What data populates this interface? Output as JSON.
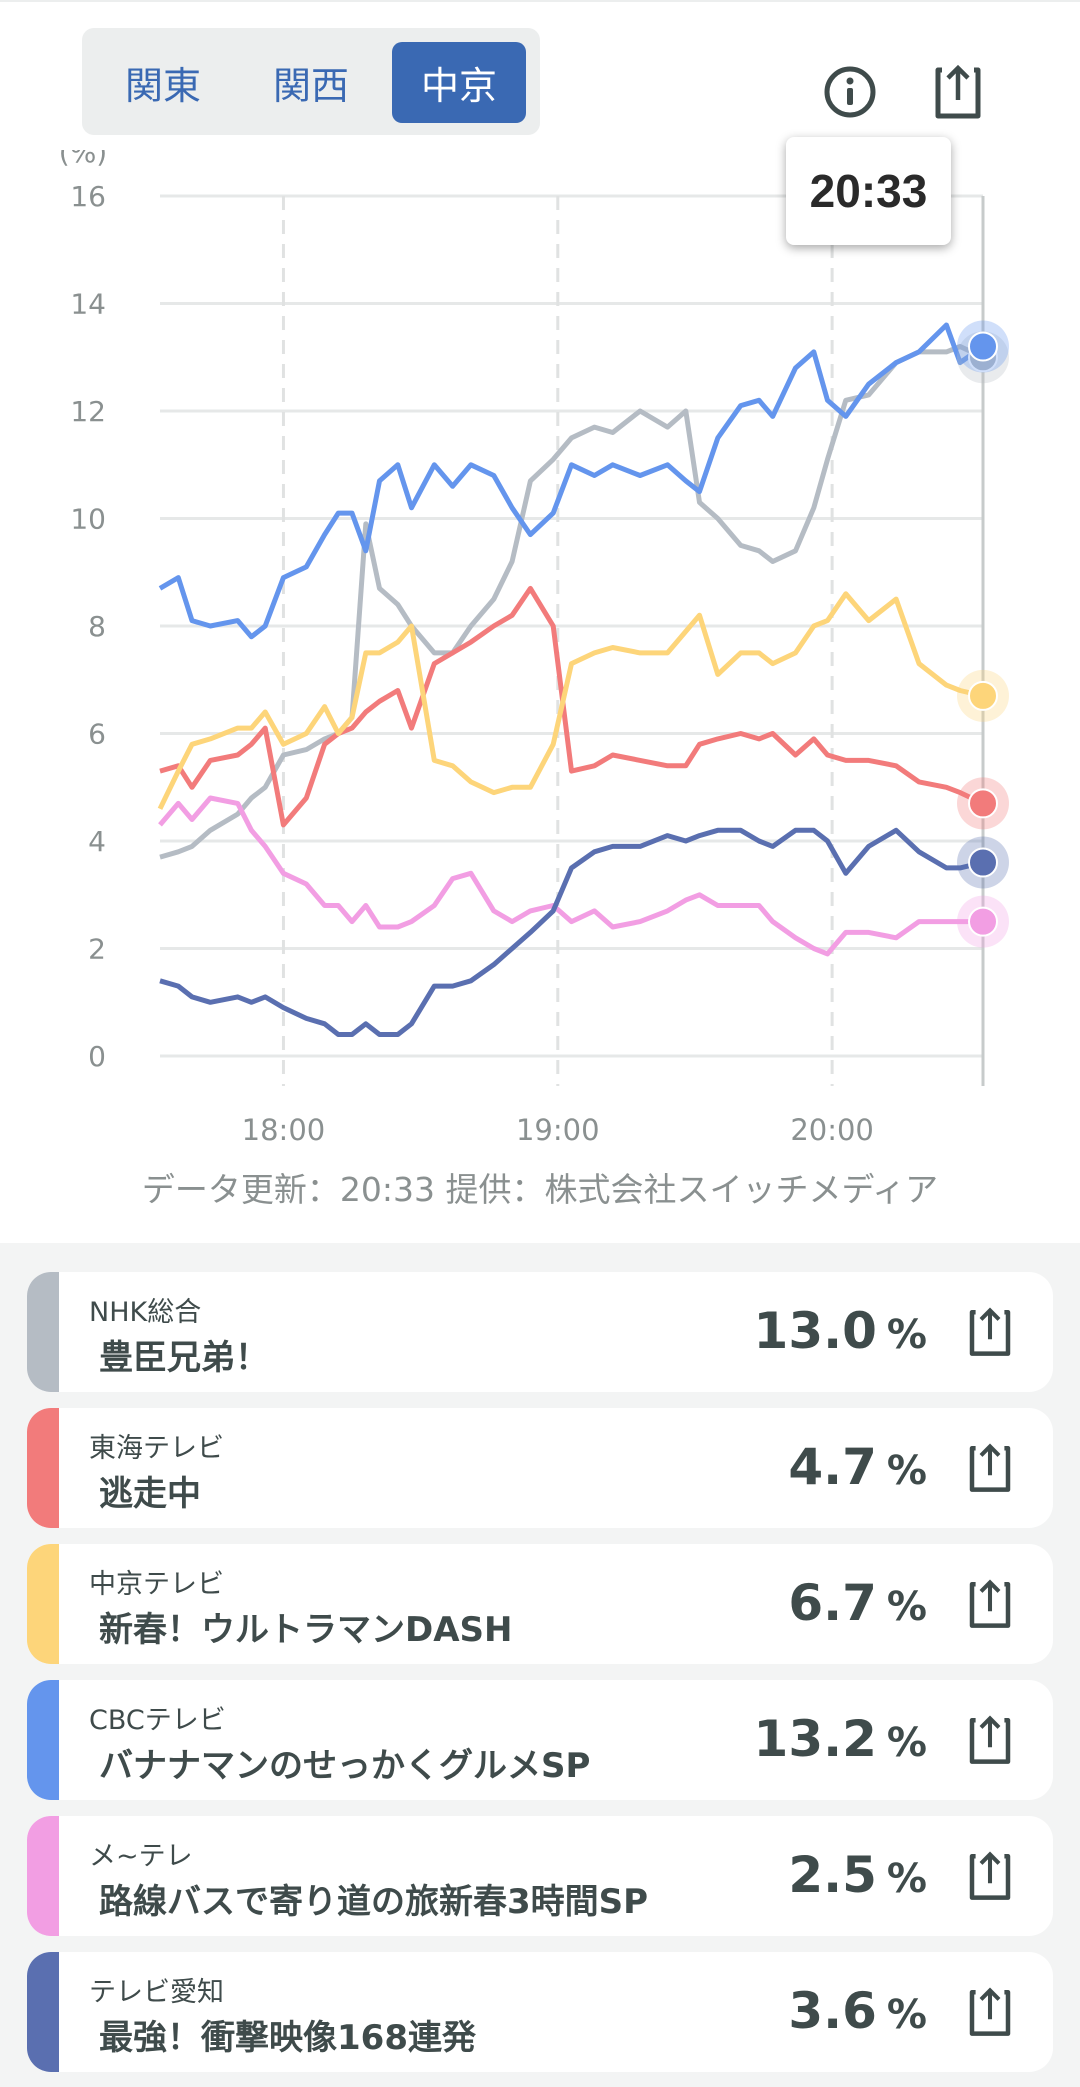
{
  "region_tabs": [
    {
      "label": "関東",
      "active": false
    },
    {
      "label": "関西",
      "active": false
    },
    {
      "label": "中京",
      "active": true
    }
  ],
  "tooltip_time": "20:33",
  "footer": "データ更新：20:33  提供：株式会社スイッチメディア",
  "colors": {
    "accent": "#3a69b3",
    "text": "#3f4b4b"
  },
  "chart_data": {
    "type": "line",
    "ylabel": "(%)",
    "ylim": [
      0,
      16
    ],
    "yticks": [
      0,
      2,
      4,
      6,
      8,
      10,
      12,
      14,
      16
    ],
    "x_unit": "minutes after 17:00",
    "xlim": [
      33,
      213
    ],
    "xticks": [
      {
        "value": 60,
        "label": "18:00"
      },
      {
        "value": 120,
        "label": "19:00"
      },
      {
        "value": 180,
        "label": "20:00"
      }
    ],
    "cursor_x": 213,
    "x": [
      33,
      37,
      40,
      44,
      50,
      53,
      56,
      60,
      65,
      69,
      72,
      75,
      78,
      81,
      85,
      88,
      93,
      97,
      101,
      106,
      110,
      114,
      119,
      123,
      128,
      132,
      138,
      144,
      148,
      151,
      155,
      160,
      164,
      167,
      172,
      176,
      179,
      183,
      188,
      194,
      199,
      205,
      208,
      213
    ],
    "series": [
      {
        "name": "NHK総合",
        "color": "#b5bcc4",
        "values": [
          3.7,
          3.8,
          3.9,
          4.2,
          4.5,
          4.8,
          5.0,
          5.6,
          5.7,
          5.9,
          6.0,
          6.3,
          9.9,
          8.7,
          8.4,
          8.0,
          7.5,
          7.5,
          8.0,
          8.5,
          9.2,
          10.7,
          11.1,
          11.5,
          11.7,
          11.6,
          12.0,
          11.7,
          12.0,
          10.3,
          10.0,
          9.5,
          9.4,
          9.2,
          9.4,
          10.2,
          11.1,
          12.2,
          12.3,
          12.9,
          13.1,
          13.1,
          13.2,
          13.0
        ]
      },
      {
        "name": "東海テレビ",
        "color": "#f27b7b",
        "values": [
          5.3,
          5.4,
          5.0,
          5.5,
          5.6,
          5.8,
          6.1,
          4.3,
          4.8,
          5.8,
          6.0,
          6.1,
          6.4,
          6.6,
          6.8,
          6.1,
          7.3,
          7.5,
          7.7,
          8.0,
          8.2,
          8.7,
          8.0,
          5.3,
          5.4,
          5.6,
          5.5,
          5.4,
          5.4,
          5.8,
          5.9,
          6.0,
          5.9,
          6.0,
          5.6,
          5.9,
          5.6,
          5.5,
          5.5,
          5.4,
          5.1,
          5.0,
          4.9,
          4.7
        ]
      },
      {
        "name": "中京テレビ",
        "color": "#fdd57a",
        "values": [
          4.6,
          5.3,
          5.8,
          5.9,
          6.1,
          6.1,
          6.4,
          5.8,
          6.0,
          6.5,
          6.0,
          6.3,
          7.5,
          7.5,
          7.7,
          8.0,
          5.5,
          5.4,
          5.1,
          4.9,
          5.0,
          5.0,
          5.8,
          7.3,
          7.5,
          7.6,
          7.5,
          7.5,
          7.9,
          8.2,
          7.1,
          7.5,
          7.5,
          7.3,
          7.5,
          8.0,
          8.1,
          8.6,
          8.1,
          8.5,
          7.3,
          6.9,
          6.8,
          6.7
        ]
      },
      {
        "name": "CBCテレビ",
        "color": "#6495ed",
        "values": [
          8.7,
          8.9,
          8.1,
          8.0,
          8.1,
          7.8,
          8.0,
          8.9,
          9.1,
          9.7,
          10.1,
          10.1,
          9.4,
          10.7,
          11.0,
          10.2,
          11.0,
          10.6,
          11.0,
          10.8,
          10.2,
          9.7,
          10.1,
          11.0,
          10.8,
          11.0,
          10.8,
          11.0,
          10.7,
          10.5,
          11.5,
          12.1,
          12.2,
          11.9,
          12.8,
          13.1,
          12.2,
          11.9,
          12.5,
          12.9,
          13.1,
          13.6,
          12.9,
          13.2
        ]
      },
      {
        "name": "メ~テレ",
        "color": "#f29ee3",
        "values": [
          4.3,
          4.7,
          4.4,
          4.8,
          4.7,
          4.2,
          3.9,
          3.4,
          3.2,
          2.8,
          2.8,
          2.5,
          2.8,
          2.4,
          2.4,
          2.5,
          2.8,
          3.3,
          3.4,
          2.7,
          2.5,
          2.7,
          2.8,
          2.5,
          2.7,
          2.4,
          2.5,
          2.7,
          2.9,
          3.0,
          2.8,
          2.8,
          2.8,
          2.5,
          2.2,
          2.0,
          1.9,
          2.3,
          2.3,
          2.2,
          2.5,
          2.5,
          2.5,
          2.5
        ]
      },
      {
        "name": "テレビ愛知",
        "color": "#5a6fb0",
        "values": [
          1.4,
          1.3,
          1.1,
          1.0,
          1.1,
          1.0,
          1.1,
          0.9,
          0.7,
          0.6,
          0.4,
          0.4,
          0.6,
          0.4,
          0.4,
          0.6,
          1.3,
          1.3,
          1.4,
          1.7,
          2.0,
          2.3,
          2.7,
          3.5,
          3.8,
          3.9,
          3.9,
          4.1,
          4.0,
          4.1,
          4.2,
          4.2,
          4.0,
          3.9,
          4.2,
          4.2,
          4.0,
          3.4,
          3.9,
          4.2,
          3.8,
          3.5,
          3.5,
          3.6
        ]
      }
    ]
  },
  "programs": [
    {
      "channel": "NHK総合",
      "title": "豊臣兄弟！",
      "rating": "13.0",
      "unit": "%",
      "color": "#b5bcc4"
    },
    {
      "channel": "東海テレビ",
      "title": "逃走中",
      "rating": "4.7",
      "unit": "%",
      "color": "#f27b7b"
    },
    {
      "channel": "中京テレビ",
      "title": "新春！ウルトラマンDASH",
      "rating": "6.7",
      "unit": "%",
      "color": "#fdd57a"
    },
    {
      "channel": "CBCテレビ",
      "title": "バナナマンのせっかくグルメSP",
      "rating": "13.2",
      "unit": "%",
      "color": "#6495ed"
    },
    {
      "channel": "メ~テレ",
      "title": "路線バスで寄り道の旅新春3時間SP",
      "rating": "2.5",
      "unit": "%",
      "color": "#f29ee3"
    },
    {
      "channel": "テレビ愛知",
      "title": "最強！衝撃映像168連発",
      "rating": "3.6",
      "unit": "%",
      "color": "#5a6fb0"
    }
  ]
}
